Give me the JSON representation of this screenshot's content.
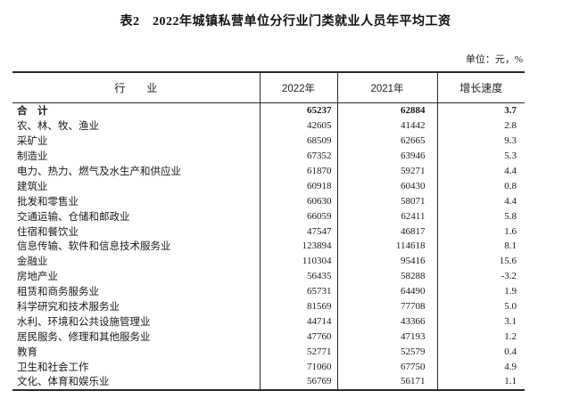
{
  "page": {
    "title": "表2　2022年城镇私营单位分行业门类就业人员年平均工资",
    "unit_note": "单位：元，%"
  },
  "colors": {
    "text": "#1a1a1a",
    "border": "#2a2a2a",
    "background": "#ffffff"
  },
  "table": {
    "columns": [
      "行　　业",
      "2022年",
      "2021年",
      "增长速度"
    ],
    "rows": [
      {
        "industry": "合　计",
        "y2022": "65237",
        "y2021": "62884",
        "growth": "3.7",
        "bold": true
      },
      {
        "industry": "农、林、牧、渔业",
        "y2022": "42605",
        "y2021": "41442",
        "growth": "2.8",
        "bold": false
      },
      {
        "industry": "采矿业",
        "y2022": "68509",
        "y2021": "62665",
        "growth": "9.3",
        "bold": false
      },
      {
        "industry": "制造业",
        "y2022": "67352",
        "y2021": "63946",
        "growth": "5.3",
        "bold": false
      },
      {
        "industry": "电力、热力、燃气及水生产和供应业",
        "y2022": "61870",
        "y2021": "59271",
        "growth": "4.4",
        "bold": false
      },
      {
        "industry": "建筑业",
        "y2022": "60918",
        "y2021": "60430",
        "growth": "0.8",
        "bold": false
      },
      {
        "industry": "批发和零售业",
        "y2022": "60630",
        "y2021": "58071",
        "growth": "4.4",
        "bold": false
      },
      {
        "industry": "交通运输、仓储和邮政业",
        "y2022": "66059",
        "y2021": "62411",
        "growth": "5.8",
        "bold": false
      },
      {
        "industry": "住宿和餐饮业",
        "y2022": "47547",
        "y2021": "46817",
        "growth": "1.6",
        "bold": false
      },
      {
        "industry": "信息传输、软件和信息技术服务业",
        "y2022": "123894",
        "y2021": "114618",
        "growth": "8.1",
        "bold": false
      },
      {
        "industry": "金融业",
        "y2022": "110304",
        "y2021": "95416",
        "growth": "15.6",
        "bold": false
      },
      {
        "industry": "房地产业",
        "y2022": "56435",
        "y2021": "58288",
        "growth": "-3.2",
        "bold": false
      },
      {
        "industry": "租赁和商务服务业",
        "y2022": "65731",
        "y2021": "64490",
        "growth": "1.9",
        "bold": false
      },
      {
        "industry": "科学研究和技术服务业",
        "y2022": "81569",
        "y2021": "77708",
        "growth": "5.0",
        "bold": false
      },
      {
        "industry": "水利、环境和公共设施管理业",
        "y2022": "44714",
        "y2021": "43366",
        "growth": "3.1",
        "bold": false
      },
      {
        "industry": "居民服务、修理和其他服务业",
        "y2022": "47760",
        "y2021": "47193",
        "growth": "1.2",
        "bold": false
      },
      {
        "industry": "教育",
        "y2022": "52771",
        "y2021": "52579",
        "growth": "0.4",
        "bold": false
      },
      {
        "industry": "卫生和社会工作",
        "y2022": "71060",
        "y2021": "67750",
        "growth": "4.9",
        "bold": false
      },
      {
        "industry": "文化、体育和娱乐业",
        "y2022": "56769",
        "y2021": "56171",
        "growth": "1.1",
        "bold": false
      }
    ]
  }
}
